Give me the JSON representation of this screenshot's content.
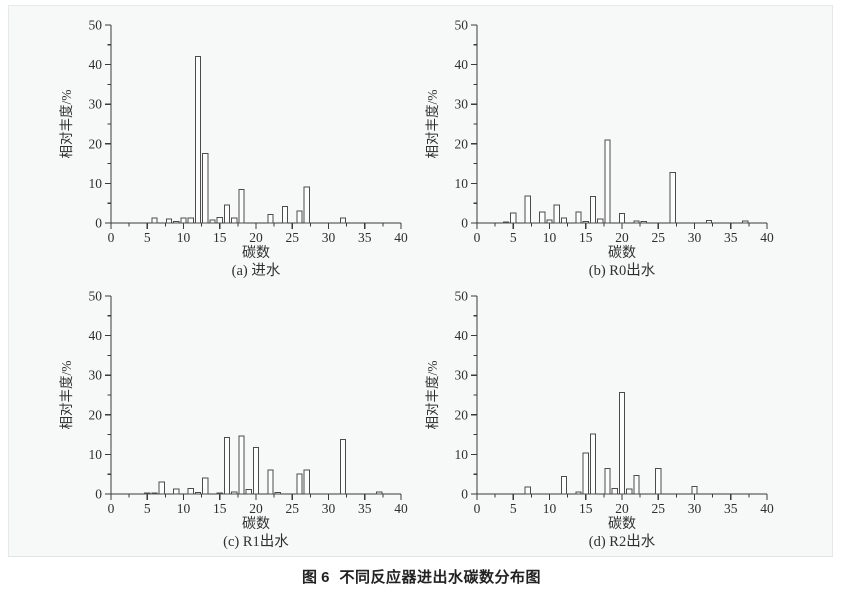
{
  "caption": {
    "label": "图 6",
    "text": "不同反应器进出水碳数分布图"
  },
  "style": {
    "panel_bg": "#f7f9f8",
    "axis_color": "#3a3a3a",
    "bar_stroke": "#4c4c4c",
    "bar_fill": "#fdfdfd",
    "text_color": "#2f2f2f"
  },
  "chart_data": [
    {
      "type": "bar",
      "subtitle": "(a) 进水",
      "xlabel": "碳数",
      "ylabel": "相对丰度/%",
      "xlim": [
        0,
        40
      ],
      "ylim": [
        0,
        50
      ],
      "x_major_tick": 5,
      "x_minor_tick": 2.5,
      "y_major_tick": 10,
      "y_minor_tick": 5,
      "grid": false,
      "legend": "none",
      "bars": [
        [
          6,
          1.2
        ],
        [
          8,
          1.0
        ],
        [
          9,
          0.4
        ],
        [
          10,
          1.2
        ],
        [
          11,
          1.2
        ],
        [
          12,
          42.0
        ],
        [
          13,
          17.5
        ],
        [
          14,
          0.7
        ],
        [
          15,
          1.4
        ],
        [
          16,
          4.6
        ],
        [
          17,
          1.2
        ],
        [
          18,
          8.4
        ],
        [
          22,
          2.1
        ],
        [
          24,
          4.2
        ],
        [
          26,
          3.0
        ],
        [
          27,
          9.1
        ],
        [
          32,
          1.2
        ]
      ]
    },
    {
      "type": "bar",
      "subtitle": "(b) R0出水",
      "xlabel": "碳数",
      "ylabel": "相对丰度/%",
      "xlim": [
        0,
        40
      ],
      "ylim": [
        0,
        50
      ],
      "x_major_tick": 5,
      "x_minor_tick": 2.5,
      "y_major_tick": 10,
      "y_minor_tick": 5,
      "grid": false,
      "legend": "none",
      "bars": [
        [
          4,
          0.3
        ],
        [
          5,
          2.5
        ],
        [
          7,
          6.8
        ],
        [
          9,
          2.8
        ],
        [
          10,
          0.8
        ],
        [
          11,
          4.6
        ],
        [
          12,
          1.3
        ],
        [
          14,
          2.8
        ],
        [
          15,
          0.4
        ],
        [
          16,
          6.7
        ],
        [
          17,
          1.0
        ],
        [
          18,
          21.0
        ],
        [
          20,
          2.4
        ],
        [
          22,
          0.5
        ],
        [
          23,
          0.4
        ],
        [
          27,
          12.8
        ],
        [
          32,
          0.6
        ],
        [
          37,
          0.5
        ]
      ]
    },
    {
      "type": "bar",
      "subtitle": "(c) R1出水",
      "xlabel": "碳数",
      "ylabel": "相对丰度/%",
      "xlim": [
        0,
        40
      ],
      "ylim": [
        0,
        50
      ],
      "x_major_tick": 5,
      "x_minor_tick": 2.5,
      "y_major_tick": 10,
      "y_minor_tick": 5,
      "grid": false,
      "legend": "none",
      "bars": [
        [
          5,
          0.2
        ],
        [
          6,
          0.3
        ],
        [
          7,
          3.0
        ],
        [
          9,
          1.3
        ],
        [
          11,
          1.4
        ],
        [
          12,
          0.4
        ],
        [
          13,
          4.0
        ],
        [
          15,
          0.3
        ],
        [
          16,
          14.3
        ],
        [
          17,
          0.5
        ],
        [
          18,
          14.6
        ],
        [
          19,
          1.1
        ],
        [
          20,
          11.8
        ],
        [
          22,
          6.0
        ],
        [
          23,
          0.4
        ],
        [
          26,
          5.0
        ],
        [
          27,
          6.0
        ],
        [
          32,
          13.8
        ],
        [
          37,
          0.5
        ]
      ]
    },
    {
      "type": "bar",
      "subtitle": "(d) R2出水",
      "xlabel": "碳数",
      "ylabel": "相对丰度/%",
      "xlim": [
        0,
        40
      ],
      "ylim": [
        0,
        50
      ],
      "x_major_tick": 5,
      "x_minor_tick": 2.5,
      "y_major_tick": 10,
      "y_minor_tick": 5,
      "grid": false,
      "legend": "none",
      "bars": [
        [
          7,
          1.8
        ],
        [
          12,
          4.4
        ],
        [
          14,
          0.5
        ],
        [
          15,
          10.3
        ],
        [
          16,
          15.2
        ],
        [
          18,
          6.5
        ],
        [
          19,
          1.4
        ],
        [
          20,
          25.6
        ],
        [
          21,
          1.2
        ],
        [
          22,
          4.7
        ],
        [
          25,
          6.5
        ],
        [
          30,
          1.9
        ]
      ]
    }
  ]
}
